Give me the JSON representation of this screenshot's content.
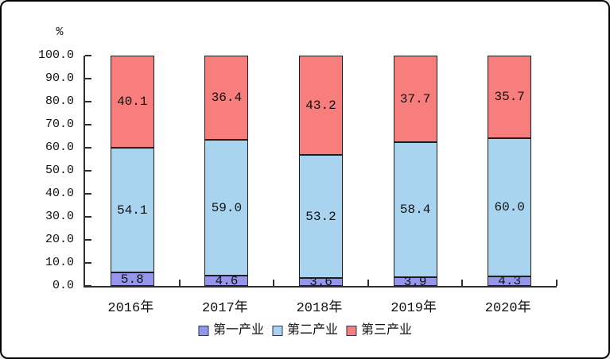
{
  "chart_data": {
    "type": "bar",
    "stacked": true,
    "title": "",
    "ylabel": "%",
    "xlabel": "",
    "ylim": [
      0,
      100
    ],
    "ytick_step": 10,
    "ytick_format": "one-decimal",
    "grid": false,
    "legend_position": "bottom",
    "categories": [
      "2016年",
      "2017年",
      "2018年",
      "2019年",
      "2020年"
    ],
    "series": [
      {
        "name": "第一产业",
        "color": "#9595ec",
        "values": [
          5.8,
          4.6,
          3.6,
          3.9,
          4.3
        ]
      },
      {
        "name": "第二产业",
        "color": "#a8d4f0",
        "values": [
          54.1,
          59.0,
          53.2,
          58.4,
          60.0
        ]
      },
      {
        "name": "第三产业",
        "color": "#f87d7d",
        "values": [
          40.1,
          36.4,
          43.2,
          37.7,
          35.7
        ]
      }
    ],
    "styles": {
      "axis_color": "#2f2f2f",
      "bar_border_color": "#1f1f1f",
      "text_color": "#111111",
      "background": "#ffffff",
      "frame_border": "#000000"
    }
  }
}
